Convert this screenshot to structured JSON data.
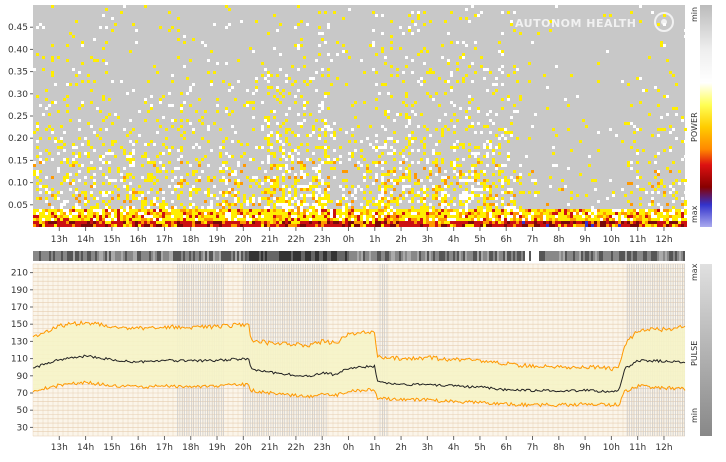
{
  "watermark": "AUTONOM HEALTH",
  "colors": {
    "gray": "#c8c8c8",
    "white": "#ffffff",
    "yellow": "#ffee00",
    "orange": "#ff9900",
    "red": "#cc1111",
    "dark_red": "#7a0a0a",
    "blue": "#3333cc",
    "pulse_band": "#f6f4c8",
    "pulse_limit": "#ff9900",
    "pulse_median": "#222222",
    "grid": "#e6cdb0"
  },
  "chart_data": [
    {
      "type": "heatmap",
      "title": "",
      "colorbar_label": "POWER",
      "colorbar_top": "min",
      "colorbar_bottom": "max",
      "y_ticks": [
        "0.05",
        "0.10",
        "0.15",
        "0.20",
        "0.25",
        "0.30",
        "0.35",
        "0.40",
        "0.45"
      ],
      "ylim": [
        0,
        0.5
      ],
      "x_ticks": [
        "13h",
        "14h",
        "15h",
        "16h",
        "17h",
        "18h",
        "19h",
        "20h",
        "21h",
        "22h",
        "23h",
        "0h",
        "1h",
        "2h",
        "3h",
        "4h",
        "5h",
        "6h",
        "7h",
        "8h",
        "9h",
        "10h",
        "11h",
        "12h"
      ],
      "xlim_hours": [
        12.0,
        36.8
      ]
    },
    {
      "type": "line",
      "title": "",
      "side_label": "PULSE",
      "side_top": "max",
      "side_bottom": "min",
      "y_ticks": [
        "30",
        "50",
        "70",
        "90",
        "110",
        "130",
        "150",
        "170",
        "190",
        "210"
      ],
      "ylim": [
        20,
        220
      ],
      "x_ticks": [
        "13h",
        "14h",
        "15h",
        "16h",
        "17h",
        "18h",
        "19h",
        "20h",
        "21h",
        "22h",
        "23h",
        "0h",
        "1h",
        "2h",
        "3h",
        "4h",
        "5h",
        "6h",
        "7h",
        "8h",
        "9h",
        "10h",
        "11h",
        "12h"
      ],
      "xlim_hours": [
        12.0,
        36.8
      ],
      "series": [
        {
          "name": "",
          "role": "upper",
          "x": [
            12.0,
            13.0,
            14.0,
            15.0,
            16.0,
            17.0,
            18.0,
            19.0,
            20.2,
            20.3,
            21.0,
            22.0,
            22.5,
            23.0,
            23.5,
            24.0,
            25.0,
            25.1,
            26.0,
            27.0,
            28.0,
            29.0,
            30.0,
            31.0,
            32.0,
            33.0,
            34.0,
            34.3,
            34.5,
            35.0,
            36.0,
            36.8
          ],
          "y": [
            135,
            148,
            152,
            147,
            145,
            147,
            146,
            147,
            150,
            132,
            128,
            126,
            125,
            130,
            128,
            138,
            141,
            112,
            110,
            111,
            109,
            108,
            104,
            101,
            100,
            101,
            98,
            100,
            126,
            143,
            144,
            147
          ]
        },
        {
          "name": "",
          "role": "median",
          "x": [
            12.0,
            13.0,
            14.0,
            15.0,
            16.0,
            17.0,
            18.0,
            19.0,
            20.2,
            20.3,
            21.0,
            22.0,
            22.5,
            23.0,
            23.5,
            24.0,
            25.0,
            25.1,
            26.0,
            27.0,
            28.0,
            29.0,
            30.0,
            31.0,
            32.0,
            33.0,
            34.0,
            34.3,
            34.5,
            35.0,
            36.0,
            36.8
          ],
          "y": [
            99,
            109,
            113,
            109,
            106,
            108,
            107,
            108,
            110,
            98,
            94,
            91,
            89,
            94,
            91,
            99,
            101,
            83,
            80,
            80,
            78,
            77,
            74,
            73,
            72,
            73,
            71,
            73,
            98,
            108,
            107,
            106
          ]
        },
        {
          "name": "",
          "role": "lower",
          "x": [
            12.0,
            13.0,
            14.0,
            15.0,
            16.0,
            17.0,
            18.0,
            19.0,
            20.2,
            20.3,
            21.0,
            22.0,
            22.5,
            23.0,
            23.5,
            24.0,
            25.0,
            25.1,
            26.0,
            27.0,
            28.0,
            29.0,
            30.0,
            31.0,
            32.0,
            33.0,
            34.0,
            34.3,
            34.5,
            35.0,
            36.0,
            36.8
          ],
          "y": [
            72,
            79,
            82,
            79,
            77,
            78,
            77,
            78,
            80,
            73,
            70,
            67,
            66,
            69,
            67,
            72,
            74,
            64,
            62,
            62,
            60,
            59,
            57,
            56,
            56,
            57,
            56,
            57,
            72,
            78,
            76,
            75
          ]
        }
      ]
    }
  ]
}
